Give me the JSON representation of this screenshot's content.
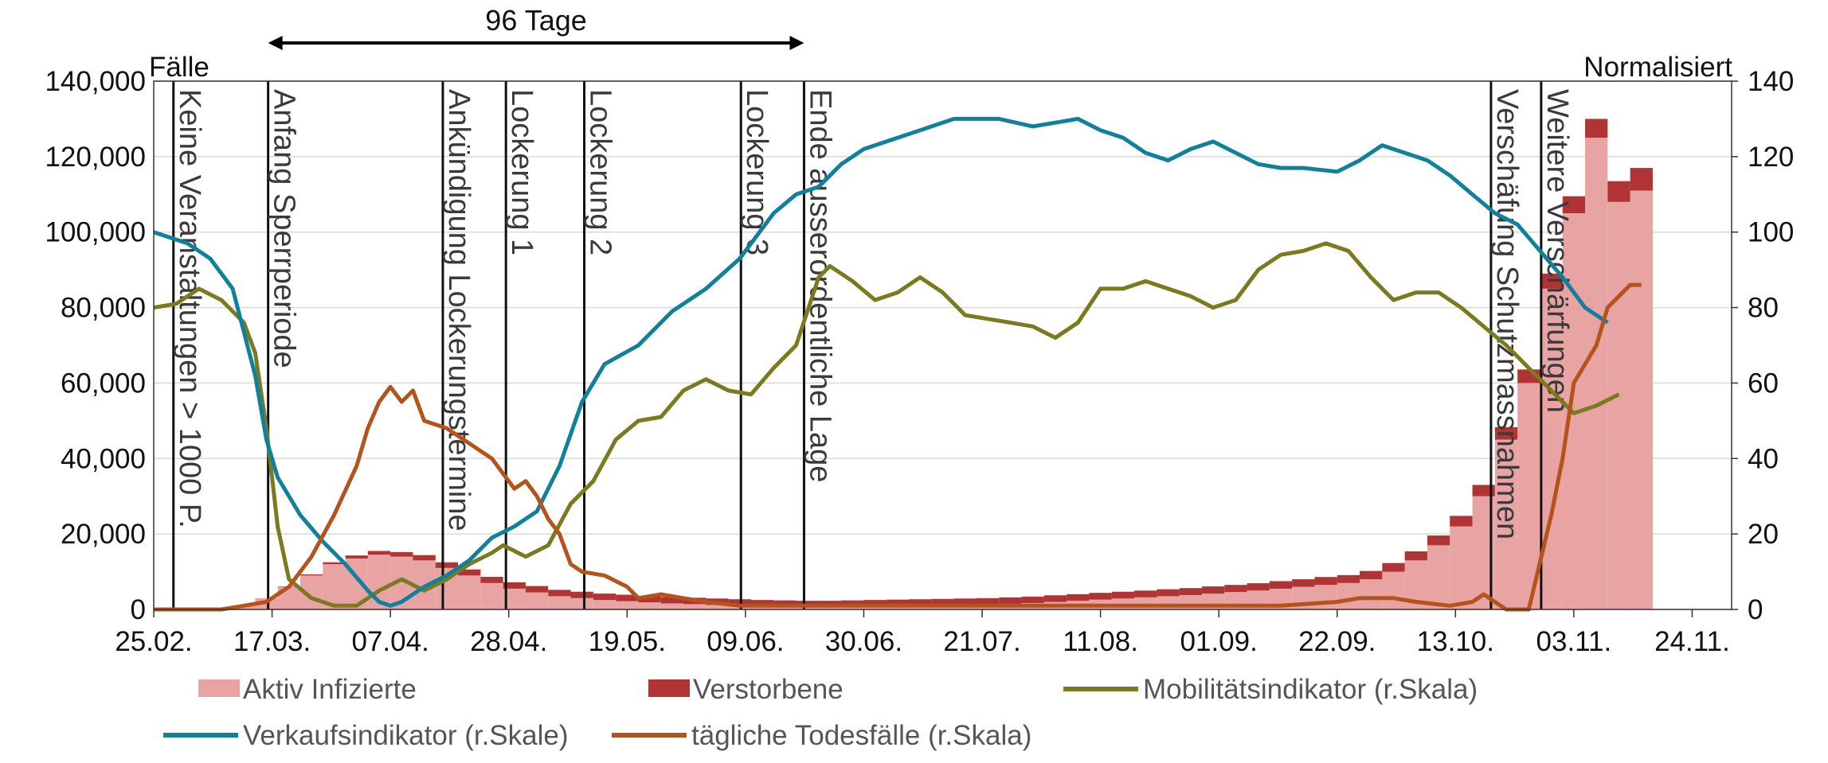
{
  "chart_data": {
    "type": "bar",
    "y_axis_label": "Fälle",
    "y2_axis_label": "Normalisiert",
    "annotation": "96 Tage",
    "xlim": [
      0,
      280
    ],
    "xticks": [
      {
        "value": 0,
        "label": "25.02."
      },
      {
        "value": 21,
        "label": "17.03."
      },
      {
        "value": 42,
        "label": "07.04."
      },
      {
        "value": 63,
        "label": "28.04."
      },
      {
        "value": 84,
        "label": "19.05."
      },
      {
        "value": 105,
        "label": "09.06."
      },
      {
        "value": 126,
        "label": "30.06."
      },
      {
        "value": 147,
        "label": "21.07."
      },
      {
        "value": 168,
        "label": "11.08."
      },
      {
        "value": 189,
        "label": "01.09."
      },
      {
        "value": 210,
        "label": "22.09."
      },
      {
        "value": 231,
        "label": "13.10."
      },
      {
        "value": 252,
        "label": "03.11."
      },
      {
        "value": 273,
        "label": "24.11."
      }
    ],
    "ylim": [
      0,
      140000
    ],
    "yticks": [
      0,
      {
        "value": 20000,
        "label": "20,000"
      },
      {
        "value": 40000,
        "label": "40,000"
      },
      {
        "value": 60000,
        "label": "60,000"
      },
      {
        "value": 80000,
        "label": "80,000"
      },
      {
        "value": 100000,
        "label": "100,000"
      },
      {
        "value": 120000,
        "label": "120,000"
      },
      {
        "value": 140000,
        "label": "140,000"
      }
    ],
    "y2lim": [
      0,
      140
    ],
    "y2ticks": [
      0,
      20,
      40,
      60,
      80,
      100,
      120,
      140
    ],
    "grid": true,
    "events": [
      {
        "label": "Keine Veranstaltungen > 1000 P.",
        "x": 3.5
      },
      {
        "label": "Anfang Sperrperiode",
        "x": 20.3
      },
      {
        "label": "Ankündigung Lockerungstermine",
        "x": 51.3
      },
      {
        "label": "Lockerung 1",
        "x": 62.5
      },
      {
        "label": "Lockerung 2",
        "x": 76.4
      },
      {
        "label": "Lockerung 3",
        "x": 104.2
      },
      {
        "label": "Ende ausserordentliche Lage",
        "x": 115.4
      },
      {
        "label": "Verschäfung Schutzmassnahmen",
        "x": 237.3
      },
      {
        "label": "Weitere Verschärfungen",
        "x": 246.2
      }
    ],
    "series": [
      {
        "name": "Aktiv Infizierte",
        "type": "bar",
        "color": "#e8a3a3",
        "x": [
          0,
          4,
          8,
          12,
          16,
          20,
          24,
          28,
          32,
          36,
          40,
          44,
          48,
          52,
          56,
          60,
          64,
          68,
          72,
          76,
          80,
          84,
          88,
          92,
          96,
          100,
          104,
          108,
          112,
          116,
          120,
          124,
          128,
          132,
          136,
          140,
          144,
          148,
          152,
          156,
          160,
          164,
          168,
          172,
          176,
          180,
          184,
          188,
          192,
          196,
          200,
          204,
          208,
          212,
          216,
          220,
          224,
          228,
          232,
          236,
          240,
          244,
          248,
          252,
          256,
          260,
          264
        ],
        "values": [
          0,
          0,
          0,
          100,
          1000,
          3000,
          6000,
          9000,
          12000,
          13500,
          14500,
          14000,
          13000,
          11000,
          9000,
          7000,
          5500,
          4500,
          3500,
          3000,
          2500,
          2200,
          1900,
          1600,
          1400,
          1200,
          1000,
          800,
          700,
          600,
          600,
          700,
          800,
          900,
          1000,
          1100,
          1200,
          1300,
          1500,
          1700,
          2000,
          2300,
          2600,
          2900,
          3200,
          3500,
          3800,
          4200,
          4600,
          5000,
          5500,
          6000,
          6500,
          7000,
          8000,
          10000,
          13000,
          17000,
          22000,
          30000,
          45000,
          60000,
          85000,
          105000,
          125000,
          108000,
          111000
        ]
      },
      {
        "name": "Verstorbene",
        "type": "bar",
        "color": "#b03434",
        "x": [
          0,
          4,
          8,
          12,
          16,
          20,
          24,
          28,
          32,
          36,
          40,
          44,
          48,
          52,
          56,
          60,
          64,
          68,
          72,
          76,
          80,
          84,
          88,
          92,
          96,
          100,
          104,
          108,
          112,
          116,
          120,
          124,
          128,
          132,
          136,
          140,
          144,
          148,
          152,
          156,
          160,
          164,
          168,
          172,
          176,
          180,
          184,
          188,
          192,
          196,
          200,
          204,
          208,
          212,
          216,
          220,
          224,
          228,
          232,
          236,
          240,
          244,
          248,
          252,
          256,
          260,
          264
        ],
        "values": [
          0,
          0,
          0,
          0,
          0,
          0,
          100,
          300,
          500,
          800,
          1000,
          1200,
          1400,
          1500,
          1600,
          1650,
          1700,
          1700,
          1700,
          1700,
          1700,
          1700,
          1700,
          1700,
          1700,
          1700,
          1700,
          1700,
          1700,
          1700,
          1700,
          1700,
          1700,
          1700,
          1700,
          1700,
          1700,
          1700,
          1700,
          1700,
          1750,
          1750,
          1800,
          1800,
          1800,
          1850,
          1850,
          1900,
          1900,
          1950,
          2000,
          2000,
          2100,
          2100,
          2200,
          2300,
          2400,
          2600,
          2800,
          3000,
          3300,
          3600,
          4000,
          4500,
          5000,
          5500,
          6000
        ]
      },
      {
        "name": "Mobilitätsindikator (r.Skala)",
        "type": "line",
        "axis": "y2",
        "color": "#7a7a1f",
        "x": [
          0,
          4,
          8,
          12,
          16,
          18,
          20,
          22,
          24,
          28,
          32,
          36,
          40,
          44,
          48,
          52,
          56,
          60,
          62,
          66,
          70,
          74,
          78,
          82,
          86,
          90,
          94,
          98,
          102,
          106,
          110,
          114,
          118,
          120,
          124,
          128,
          132,
          136,
          140,
          144,
          148,
          152,
          156,
          160,
          164,
          168,
          172,
          176,
          180,
          184,
          188,
          192,
          196,
          200,
          204,
          208,
          212,
          216,
          220,
          224,
          228,
          232,
          236,
          240,
          244,
          248,
          252,
          256,
          260
        ],
        "values": [
          80,
          81,
          85,
          82,
          76,
          68,
          48,
          22,
          8,
          3,
          1,
          1,
          5,
          8,
          5,
          8,
          12,
          15,
          17,
          14,
          17,
          28,
          34,
          45,
          50,
          51,
          58,
          61,
          58,
          57,
          64,
          70,
          88,
          91,
          87,
          82,
          84,
          88,
          84,
          78,
          77,
          76,
          75,
          72,
          76,
          85,
          85,
          87,
          85,
          83,
          80,
          82,
          90,
          94,
          95,
          97,
          95,
          88,
          82,
          84,
          84,
          80,
          75,
          70,
          64,
          58,
          52,
          54,
          57
        ]
      },
      {
        "name": "Verkaufsindikator (r.Skale)",
        "type": "line",
        "axis": "y2",
        "color": "#11809b",
        "x": [
          0,
          6,
          10,
          14,
          18,
          20,
          22,
          26,
          30,
          34,
          38,
          40,
          42,
          44,
          48,
          52,
          56,
          60,
          64,
          68,
          72,
          76,
          80,
          86,
          92,
          98,
          104,
          110,
          114,
          118,
          122,
          126,
          130,
          136,
          142,
          150,
          156,
          160,
          164,
          168,
          172,
          176,
          180,
          184,
          188,
          192,
          196,
          200,
          204,
          210,
          214,
          218,
          222,
          226,
          230,
          234,
          238,
          242,
          246,
          250,
          254,
          258
        ],
        "values": [
          100,
          97,
          93,
          85,
          62,
          45,
          35,
          25,
          18,
          12,
          5,
          2,
          1,
          2,
          6,
          9,
          13,
          19,
          22,
          26,
          38,
          55,
          65,
          70,
          79,
          85,
          93,
          105,
          110,
          112,
          118,
          122,
          124,
          127,
          130,
          130,
          128,
          129,
          130,
          127,
          125,
          121,
          119,
          122,
          124,
          121,
          118,
          117,
          117,
          116,
          119,
          123,
          121,
          119,
          115,
          110,
          105,
          102,
          95,
          88,
          80,
          76
        ]
      },
      {
        "name": "tägliche Todesfälle (r.Skala)",
        "type": "line",
        "axis": "y2",
        "color": "#b4531c",
        "x": [
          0,
          12,
          16,
          20,
          24,
          28,
          32,
          36,
          38,
          40,
          42,
          44,
          46,
          48,
          52,
          56,
          60,
          62,
          64,
          66,
          68,
          70,
          72,
          74,
          76,
          80,
          84,
          86,
          90,
          94,
          98,
          104,
          110,
          120,
          130,
          140,
          150,
          160,
          170,
          180,
          190,
          200,
          210,
          214,
          220,
          224,
          230,
          234,
          236,
          238,
          240,
          244,
          248,
          250,
          252,
          256,
          258,
          262,
          264
        ],
        "values": [
          0,
          0,
          1,
          2,
          6,
          14,
          25,
          38,
          48,
          55,
          59,
          55,
          58,
          50,
          48,
          44,
          40,
          36,
          32,
          34,
          30,
          24,
          20,
          12,
          10,
          9,
          6,
          3,
          4,
          3,
          2,
          1,
          1,
          1,
          1,
          1,
          1,
          1,
          1,
          1,
          1,
          1,
          2,
          3,
          3,
          2,
          1,
          2,
          4,
          2,
          0,
          0,
          25,
          40,
          60,
          70,
          80,
          86,
          86
        ]
      }
    ]
  }
}
